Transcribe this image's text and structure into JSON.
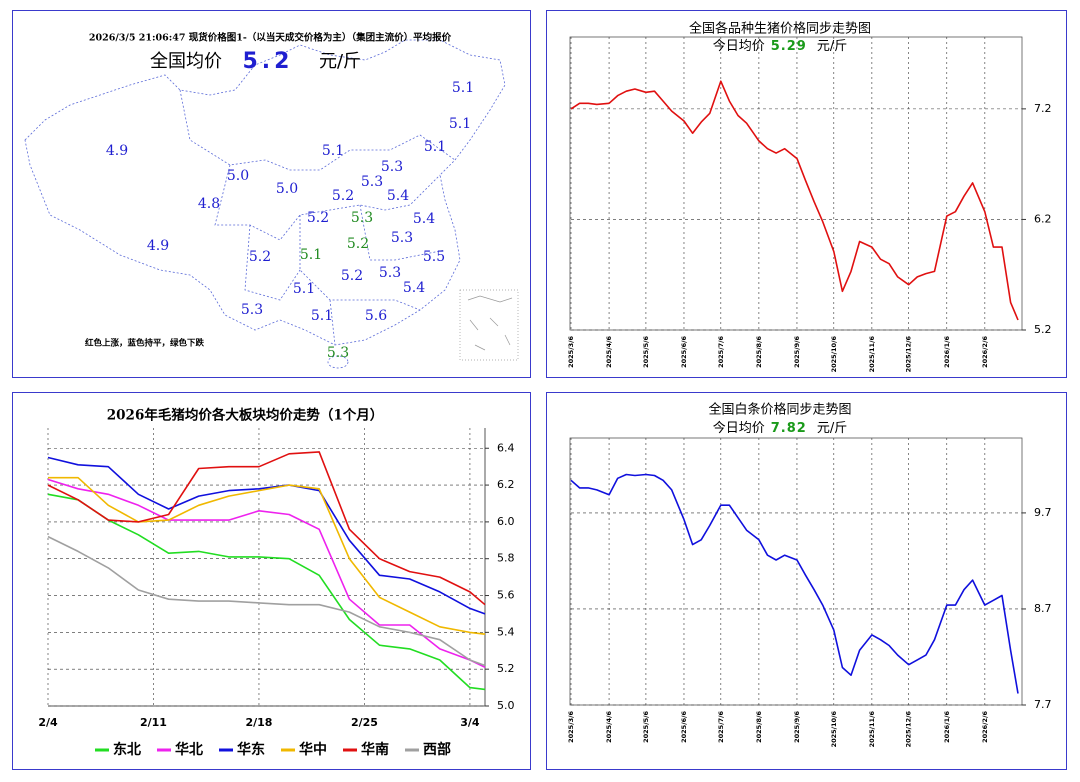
{
  "map": {
    "title": "2026/3/5  21:06:47 现货价格图1-（以当天成交价格为主）（集团主流价）平均报价",
    "avg_label": "全国均价",
    "avg_value": "5.2",
    "avg_unit": "元/斤",
    "avg_color": "#1f1fd0",
    "labels": [
      "5.1",
      "5.1",
      "4.9",
      "5.1",
      "5.1",
      "5.3",
      "5.0",
      "5.3",
      "5.0",
      "5.2",
      "5.4",
      "4.8",
      "5.2",
      "5.3",
      "5.4",
      "5.3",
      "5.2",
      "4.9",
      "5.2",
      "5.1",
      "5.5",
      "5.2",
      "5.3",
      "5.4",
      "5.1",
      "5.3",
      "5.1",
      "5.6",
      "5.3"
    ],
    "label_colors": [
      "#1f1fd0",
      "#1f1fd0",
      "#1f1fd0",
      "#1f1fd0",
      "#1f1fd0",
      "#1f1fd0",
      "#1f1fd0",
      "#1f1fd0",
      "#1f1fd0",
      "#1f1fd0",
      "#1f1fd0",
      "#1f1fd0",
      "#1f1fd0",
      "#228b22",
      "#1f1fd0",
      "#1f1fd0",
      "#228b22",
      "#1f1fd0",
      "#1f1fd0",
      "#228b22",
      "#1f1fd0",
      "#1f1fd0",
      "#1f1fd0",
      "#1f1fd0",
      "#1f1fd0",
      "#1f1fd0",
      "#1f1fd0",
      "#1f1fd0",
      "#228b22"
    ],
    "legend": "红色上涨，蓝色持平，绿色下跌"
  },
  "chart_data": [
    {
      "type": "line",
      "title": "全国各品种生猪价格同步走势图",
      "subtitle": {
        "label": "今日均价",
        "value": "5.29",
        "unit": "元/斤",
        "value_color": "#1a9a1a"
      },
      "x": [
        "2025/3/6",
        "2025/3/13",
        "2025/3/20",
        "2025/3/27",
        "2025/4/6",
        "2025/4/13",
        "2025/4/20",
        "2025/4/27",
        "2025/5/6",
        "2025/5/13",
        "2025/5/20",
        "2025/5/27",
        "2025/6/6",
        "2025/6/13",
        "2025/6/20",
        "2025/6/27",
        "2025/7/6",
        "2025/7/13",
        "2025/7/20",
        "2025/7/27",
        "2025/8/6",
        "2025/8/13",
        "2025/8/20",
        "2025/8/27",
        "2025/9/6",
        "2025/9/13",
        "2025/9/20",
        "2025/9/27",
        "2025/10/6",
        "2025/10/13",
        "2025/10/20",
        "2025/10/27",
        "2025/11/6",
        "2025/11/13",
        "2025/11/20",
        "2025/11/27",
        "2025/12/6",
        "2025/12/13",
        "2025/12/20",
        "2025/12/27",
        "2026/1/6",
        "2026/1/13",
        "2026/1/20",
        "2026/1/27",
        "2026/2/6",
        "2026/2/13",
        "2026/2/20",
        "2026/2/27",
        "2026/3/5"
      ],
      "series": [
        {
          "color": "#e01010",
          "values": [
            7.2,
            7.25,
            7.25,
            7.24,
            7.25,
            7.32,
            7.36,
            7.38,
            7.35,
            7.36,
            7.27,
            7.18,
            7.09,
            6.98,
            7.08,
            7.16,
            7.45,
            7.27,
            7.14,
            7.07,
            6.91,
            6.84,
            6.8,
            6.84,
            6.75,
            6.55,
            6.36,
            6.18,
            5.91,
            5.55,
            5.73,
            6.0,
            5.95,
            5.84,
            5.8,
            5.68,
            5.61,
            5.68,
            5.71,
            5.73,
            6.23,
            6.27,
            6.41,
            6.53,
            6.27,
            5.95,
            5.95,
            5.45,
            5.29
          ]
        }
      ],
      "xlim": [
        "2025/3/6",
        "2026/3/5"
      ],
      "xticks": [
        "2025/3/6",
        "2025/4/6",
        "2025/5/6",
        "2025/6/6",
        "2025/7/6",
        "2025/8/6",
        "2025/9/6",
        "2025/10/6",
        "2025/11/6",
        "2025/12/6",
        "2026/1/6",
        "2026/2/6"
      ],
      "ylim": [
        5.2,
        7.85
      ],
      "yticks": [
        5.2,
        6.2,
        7.2
      ],
      "grid": true
    },
    {
      "type": "line",
      "title": "2026年毛猪均价各大板块均价走势（1个月）",
      "x": [
        "2/4",
        "2/6",
        "2/8",
        "2/10",
        "2/12",
        "2/14",
        "2/16",
        "2/18",
        "2/20",
        "2/22",
        "2/24",
        "2/26",
        "2/28",
        "3/2",
        "3/4",
        "3/5"
      ],
      "series": [
        {
          "name": "东北",
          "color": "#22dd22",
          "values": [
            6.15,
            6.12,
            6.01,
            5.93,
            5.83,
            5.84,
            5.81,
            5.81,
            5.8,
            5.71,
            5.47,
            5.33,
            5.31,
            5.25,
            5.1,
            5.09
          ]
        },
        {
          "name": "华北",
          "color": "#ee22ee",
          "values": [
            6.23,
            6.18,
            6.15,
            6.09,
            6.01,
            6.01,
            6.01,
            6.06,
            6.04,
            5.96,
            5.58,
            5.44,
            5.44,
            5.31,
            5.25,
            5.21
          ]
        },
        {
          "name": "华东",
          "color": "#1010dd",
          "values": [
            6.35,
            6.31,
            6.3,
            6.15,
            6.07,
            6.14,
            6.17,
            6.18,
            6.2,
            6.17,
            5.9,
            5.71,
            5.69,
            5.62,
            5.53,
            5.5
          ]
        },
        {
          "name": "华中",
          "color": "#f0b800",
          "values": [
            6.24,
            6.24,
            6.09,
            6.0,
            6.01,
            6.09,
            6.14,
            6.17,
            6.2,
            6.18,
            5.8,
            5.59,
            5.51,
            5.43,
            5.4,
            5.39
          ]
        },
        {
          "name": "华南",
          "color": "#e01010",
          "values": [
            6.2,
            6.12,
            6.01,
            6.0,
            6.04,
            6.29,
            6.3,
            6.3,
            6.37,
            6.38,
            5.96,
            5.8,
            5.73,
            5.7,
            5.62,
            5.55
          ]
        },
        {
          "name": "西部",
          "color": "#a0a0a0",
          "values": [
            5.92,
            5.84,
            5.75,
            5.63,
            5.58,
            5.57,
            5.57,
            5.56,
            5.55,
            5.55,
            5.51,
            5.43,
            5.4,
            5.36,
            5.25,
            5.22
          ]
        }
      ],
      "xlim": [
        "2/4",
        "3/5"
      ],
      "xticks": [
        "2/4",
        "2/11",
        "2/18",
        "2/25",
        "3/4"
      ],
      "ylim": [
        5.0,
        6.51
      ],
      "yticks": [
        {
          "value": 5.0,
          "label": "5.0"
        },
        5.2,
        5.4,
        5.6,
        5.8,
        {
          "value": 6.0,
          "label": "6.0"
        },
        6.2,
        6.4
      ],
      "grid": true,
      "legend": "bottom"
    },
    {
      "type": "line",
      "title": "全国白条价格同步走势图",
      "subtitle": {
        "label": "今日均价",
        "value": "7.82",
        "unit": "元/斤",
        "value_color": "#1a9a1a"
      },
      "x": [
        "2025/3/6",
        "2025/3/13",
        "2025/3/20",
        "2025/3/27",
        "2025/4/6",
        "2025/4/13",
        "2025/4/20",
        "2025/4/27",
        "2025/5/6",
        "2025/5/13",
        "2025/5/20",
        "2025/5/27",
        "2025/6/6",
        "2025/6/13",
        "2025/6/20",
        "2025/6/27",
        "2025/7/6",
        "2025/7/13",
        "2025/7/20",
        "2025/7/27",
        "2025/8/6",
        "2025/8/13",
        "2025/8/20",
        "2025/8/27",
        "2025/9/6",
        "2025/9/13",
        "2025/9/20",
        "2025/9/27",
        "2025/10/6",
        "2025/10/13",
        "2025/10/20",
        "2025/10/27",
        "2025/11/6",
        "2025/11/13",
        "2025/11/20",
        "2025/11/27",
        "2025/12/6",
        "2025/12/13",
        "2025/12/20",
        "2025/12/27",
        "2026/1/6",
        "2026/1/13",
        "2026/1/20",
        "2026/1/27",
        "2026/2/6",
        "2026/2/13",
        "2026/2/20",
        "2026/2/27",
        "2026/3/5"
      ],
      "series": [
        {
          "color": "#1010dd",
          "values": [
            10.04,
            9.96,
            9.96,
            9.94,
            9.89,
            10.06,
            10.1,
            10.09,
            10.1,
            10.09,
            10.04,
            9.94,
            9.63,
            9.37,
            9.42,
            9.57,
            9.78,
            9.78,
            9.65,
            9.52,
            9.42,
            9.26,
            9.21,
            9.26,
            9.21,
            9.05,
            8.9,
            8.74,
            8.48,
            8.09,
            8.01,
            8.27,
            8.43,
            8.38,
            8.32,
            8.22,
            8.12,
            8.17,
            8.22,
            8.38,
            8.74,
            8.74,
            8.9,
            9.0,
            8.74,
            8.79,
            8.84,
            8.27,
            7.82
          ]
        }
      ],
      "xlim": [
        "2025/3/6",
        "2026/3/5"
      ],
      "xticks": [
        "2025/3/6",
        "2025/4/6",
        "2025/5/6",
        "2025/6/6",
        "2025/7/6",
        "2025/8/6",
        "2025/9/6",
        "2025/10/6",
        "2025/11/6",
        "2025/12/6",
        "2026/1/6",
        "2026/2/6"
      ],
      "ylim": [
        7.7,
        10.48
      ],
      "yticks": [
        7.7,
        8.7,
        9.7
      ],
      "grid": true
    }
  ]
}
